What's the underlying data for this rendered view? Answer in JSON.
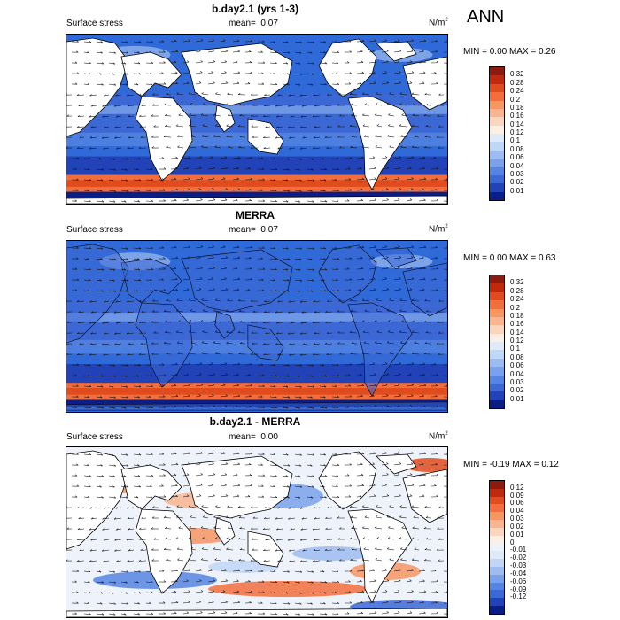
{
  "header": {
    "season": "ANN"
  },
  "panels": [
    {
      "title": "b.day2.1 (yrs 1-3)",
      "left_label": "Surface stress",
      "mean_label": "mean=",
      "mean_value": "0.07",
      "units_base": "N/m",
      "units_exp": "2",
      "minmax": "MIN =   0.00 MAX =   0.26",
      "colorbar": {
        "colors": [
          "#8c1a0f",
          "#c0290e",
          "#e04c1e",
          "#f26e3c",
          "#f79563",
          "#f9b58e",
          "#fbd5bd",
          "#fbefe6",
          "#dfe9f8",
          "#c0d6f6",
          "#9ebcef",
          "#7aa2ea",
          "#5585e2",
          "#3c68d6",
          "#2243b8",
          "#0a1e86"
        ],
        "labels": [
          "0.32",
          "0.28",
          "0.24",
          "0.2",
          "0.18",
          "0.16",
          "0.14",
          "0.12",
          "0.1",
          "0.08",
          "0.06",
          "0.04",
          "0.03",
          "0.02",
          "0.01"
        ]
      }
    },
    {
      "title": "MERRA",
      "left_label": "Surface stress",
      "mean_label": "mean=",
      "mean_value": "0.07",
      "units_base": "N/m",
      "units_exp": "2",
      "minmax": "MIN =   0.00 MAX =   0.63",
      "colorbar": {
        "colors": [
          "#8c1a0f",
          "#c0290e",
          "#e04c1e",
          "#f26e3c",
          "#f79563",
          "#f9b58e",
          "#fbd5bd",
          "#fbefe6",
          "#dfe9f8",
          "#c0d6f6",
          "#9ebcef",
          "#7aa2ea",
          "#5585e2",
          "#3c68d6",
          "#2243b8",
          "#0a1e86"
        ],
        "labels": [
          "0.32",
          "0.28",
          "0.24",
          "0.2",
          "0.18",
          "0.16",
          "0.14",
          "0.12",
          "0.1",
          "0.08",
          "0.06",
          "0.04",
          "0.03",
          "0.02",
          "0.01"
        ]
      }
    },
    {
      "title": "b.day2.1 - MERRA",
      "left_label": "Surface stress",
      "mean_label": "mean=",
      "mean_value": "0.00",
      "units_base": "N/m",
      "units_exp": "2",
      "minmax": "MIN =  -0.19 MAX =   0.12",
      "colorbar": {
        "colors": [
          "#8c1a0f",
          "#c0290e",
          "#e04c1e",
          "#f26e3c",
          "#f79563",
          "#f9b58e",
          "#fbd5bd",
          "#fbefe6",
          "#eef3fb",
          "#dfe9f8",
          "#c0d6f6",
          "#9ebcef",
          "#7aa2ea",
          "#5585e2",
          "#3c68d6",
          "#2243b8",
          "#0a1e86"
        ],
        "labels": [
          "0.12",
          "0.09",
          "0.06",
          "0.04",
          "0.03",
          "0.02",
          "0.01",
          "0",
          "-0.01",
          "-0.02",
          "-0.03",
          "-0.04",
          "-0.06",
          "-0.09",
          "-0.12"
        ]
      }
    }
  ],
  "colors": {
    "ocean_strong": "#2f6ad8",
    "ocean_weak": "#0a1e86",
    "high": "#e04c1e",
    "land": "#ffffff"
  }
}
